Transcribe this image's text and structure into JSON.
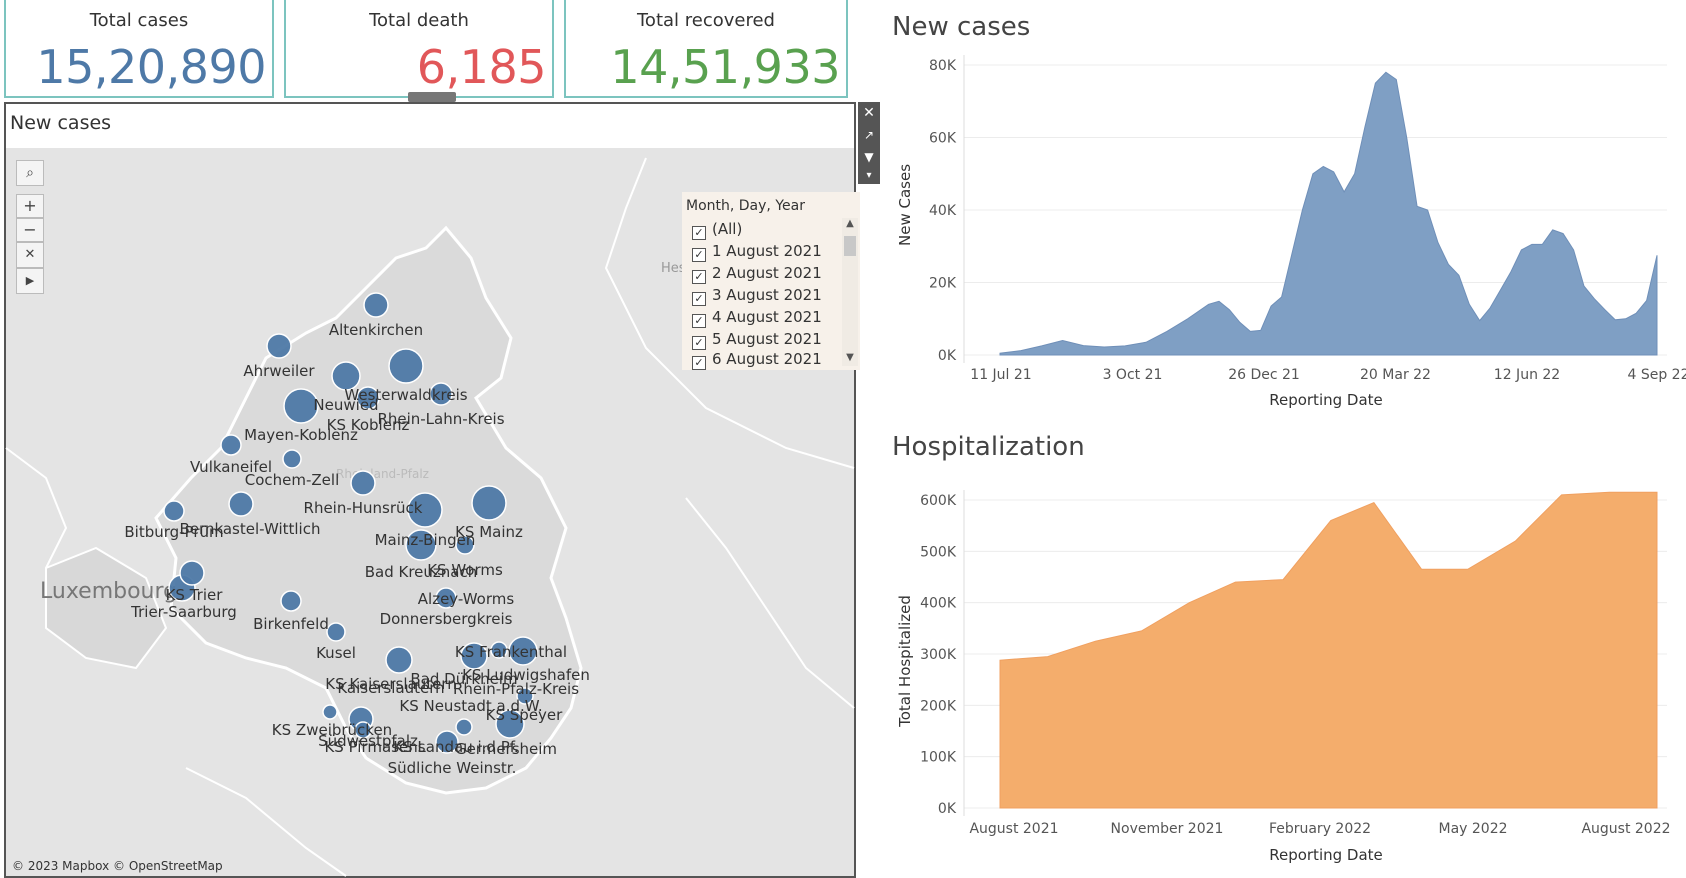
{
  "kpis": [
    {
      "label": "Total cases",
      "value": "15,20,890",
      "color": "#4e79a7"
    },
    {
      "label": "Total death",
      "value": "6,185",
      "color": "#e15759"
    },
    {
      "label": "Total recovered",
      "value": "14,51,933",
      "color": "#59a14f"
    }
  ],
  "map": {
    "title": "New cases",
    "attribution": "© 2023 Mapbox © OpenStreetMap",
    "country_label": "Luxembourg",
    "hessen_label": "Hess",
    "region_label": "Rheinland-Pfalz",
    "bubble_color": "#4e79a7",
    "filter": {
      "title": "Month, Day, Year",
      "items": [
        "(All)",
        "1 August 2021",
        "2 August 2021",
        "3 August 2021",
        "4 August 2021",
        "5 August 2021",
        "6 August 2021"
      ]
    },
    "districts": [
      {
        "name": "Altenkirchen"
      },
      {
        "name": "Ahrweiler"
      },
      {
        "name": "Westerwaldkreis"
      },
      {
        "name": "Neuwied"
      },
      {
        "name": "KS Koblenz"
      },
      {
        "name": "Rhein-Lahn-Kreis"
      },
      {
        "name": "Mayen-Koblenz"
      },
      {
        "name": "Vulkaneifel"
      },
      {
        "name": "Cochem-Zell"
      },
      {
        "name": "Rhein-Hunsrück"
      },
      {
        "name": "Bitburg-Prüm"
      },
      {
        "name": "Bernkastel-Wittlich"
      },
      {
        "name": "Mainz-Bingen"
      },
      {
        "name": "KS Mainz"
      },
      {
        "name": "Bad Kreuznach"
      },
      {
        "name": "KS Worms"
      },
      {
        "name": "KS Trier"
      },
      {
        "name": "Trier-Saarburg"
      },
      {
        "name": "Alzey-Worms"
      },
      {
        "name": "Birkenfeld"
      },
      {
        "name": "Donnersbergkreis"
      },
      {
        "name": "Kusel"
      },
      {
        "name": "KS Frankenthal"
      },
      {
        "name": "KS Kaiserslautern"
      },
      {
        "name": "Kaiserslautern"
      },
      {
        "name": "Bad Dürkheim"
      },
      {
        "name": "KS Ludwigshafen"
      },
      {
        "name": "Rhein-Pfalz-Kreis"
      },
      {
        "name": "KS Neustadt a.d.W."
      },
      {
        "name": "KS Speyer"
      },
      {
        "name": "KS Zweibrücken"
      },
      {
        "name": "Südwestpfalz"
      },
      {
        "name": "KS Pirmasens"
      },
      {
        "name": "KS Landau i.d.Pf."
      },
      {
        "name": "Germersheim"
      },
      {
        "name": "Südliche Weinstr."
      }
    ]
  },
  "charts": {
    "new_cases_title": "New cases",
    "hosp_title": "Hospitalization",
    "new_cases_color": "#7f9fc4",
    "hosp_color": "#f4ad6c"
  },
  "chart_data": [
    {
      "type": "area",
      "title": "New cases",
      "xlabel": "Reporting Date",
      "ylabel": "New Cases",
      "x_ticks": [
        "11 Jul 21",
        "3 Oct 21",
        "26 Dec 21",
        "20 Mar 22",
        "12 Jun 22",
        "4 Sep 22"
      ],
      "y_ticks": [
        "0K",
        "20K",
        "40K",
        "60K",
        "80K"
      ],
      "ylim": [
        0,
        80000
      ],
      "x": [
        "2021-07-11",
        "2021-07-25",
        "2021-08-08",
        "2021-08-22",
        "2021-09-05",
        "2021-09-19",
        "2021-10-03",
        "2021-10-17",
        "2021-10-31",
        "2021-11-14",
        "2021-11-28",
        "2021-12-05",
        "2021-12-12",
        "2021-12-19",
        "2021-12-26",
        "2022-01-02",
        "2022-01-09",
        "2022-01-16",
        "2022-01-23",
        "2022-01-30",
        "2022-02-06",
        "2022-02-13",
        "2022-02-20",
        "2022-02-27",
        "2022-03-06",
        "2022-03-13",
        "2022-03-20",
        "2022-03-27",
        "2022-04-03",
        "2022-04-10",
        "2022-04-17",
        "2022-04-24",
        "2022-05-01",
        "2022-05-08",
        "2022-05-15",
        "2022-05-22",
        "2022-05-29",
        "2022-06-05",
        "2022-06-12",
        "2022-06-19",
        "2022-06-26",
        "2022-07-03",
        "2022-07-10",
        "2022-07-17",
        "2022-07-24",
        "2022-07-31",
        "2022-08-07",
        "2022-08-14",
        "2022-08-21",
        "2022-08-28",
        "2022-09-04",
        "2022-09-11",
        "2022-09-18",
        "2022-09-25"
      ],
      "values": [
        500,
        1200,
        2500,
        4000,
        2600,
        2200,
        2500,
        3500,
        6500,
        10000,
        14000,
        14800,
        12500,
        9000,
        6500,
        6800,
        13500,
        16000,
        28000,
        40000,
        50000,
        52000,
        50500,
        45000,
        50000,
        63000,
        75000,
        78000,
        76000,
        60000,
        41000,
        40000,
        31000,
        25000,
        22000,
        14000,
        9500,
        13000,
        18000,
        23000,
        29000,
        30500,
        30500,
        34500,
        33500,
        29000,
        19000,
        15500,
        12500,
        9700,
        10000,
        11500,
        15000,
        27500
      ]
    },
    {
      "type": "area",
      "title": "Hospitalization",
      "xlabel": "Reporting Date",
      "ylabel": "Total Hospitalized",
      "x_ticks": [
        "August 2021",
        "November 2021",
        "February 2022",
        "May 2022",
        "August 2022"
      ],
      "y_ticks": [
        "0K",
        "100K",
        "200K",
        "300K",
        "400K",
        "500K",
        "600K"
      ],
      "ylim": [
        0,
        600000
      ],
      "x": [
        "2021-07",
        "2021-08",
        "2021-09",
        "2021-10",
        "2021-11",
        "2021-12",
        "2022-01",
        "2022-02",
        "2022-03",
        "2022-04",
        "2022-05",
        "2022-06",
        "2022-07",
        "2022-08",
        "2022-09"
      ],
      "values": [
        288000,
        295000,
        325000,
        345000,
        400000,
        440000,
        445000,
        560000,
        595000,
        465000,
        465000,
        520000,
        610000,
        615000,
        615000
      ]
    }
  ]
}
